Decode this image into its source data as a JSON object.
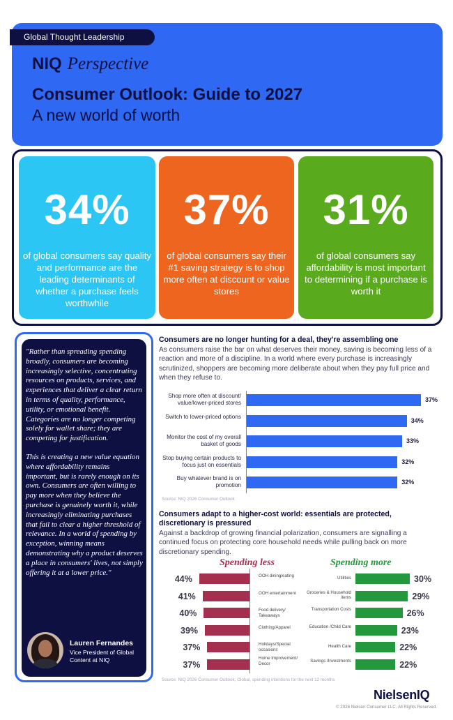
{
  "header": {
    "tag": "Global Thought Leadership",
    "brand_niq": "NIQ",
    "brand_perspective": "Perspective",
    "title": "Consumer Outlook: Guide to 2027",
    "subtitle": "A new world of worth",
    "colors": {
      "header_bg": "#2f68f2",
      "navy": "#0f1042"
    }
  },
  "stats": [
    {
      "value": "34%",
      "text": "of global consumers say quality and performance are the leading determinants of whether a purchase feels worthwhile",
      "color": "#2cc6f4"
    },
    {
      "value": "37%",
      "text": "of global consumers say their #1 saving strategy is to shop more often at discount or value stores",
      "color": "#ee6520"
    },
    {
      "value": "31%",
      "text": "of global consumers say affordability is most important to determining if a purchase is worth it",
      "color": "#5aaa1e"
    }
  ],
  "quote": {
    "paragraph1": "\"Rather than spreading spending broadly, consumers are becoming increasingly selective, concentrating resources on products, services, and experiences that deliver a clear return in terms of quality, performance, utility, or emotional benefit. Categories are no longer competing solely for wallet share; they are competing for justification.",
    "paragraph2": "This is creating a new value equation where affordability remains important, but is rarely enough on its own. Consumers are often willing to pay more when they believe the purchase is genuinely worth it, while increasingly eliminating purchases that fail to clear a higher threshold of relevance. In a world of spending by exception, winning means demonstrating why a product deserves a place in consumers' lives, not simply offering it at a lower price.\"",
    "name": "Lauren Fernandes",
    "role": "Vice President of Global Content at NIQ"
  },
  "section1": {
    "heading": "Consumers are no longer hunting for a deal, they're assembling one",
    "body": "As consumers raise the bar on what deserves their money, saving is becoming less of a reaction and more of a discipline. In a world where every purchase is increasingly scrutinized, shoppers are becoming more deliberate about when they pay full price and when they refuse to.",
    "source": "Source: NIQ 2026 Consumer Outlook"
  },
  "section2": {
    "heading_line1": "Consumers adapt to a higher-cost world: essentials are protected,",
    "heading_line2": "discretionary is pressured",
    "body": "Against a backdrop of growing financial polarization, consumers are signalling a continued focus on protecting core household needs while pulling back on more discretionary spending.",
    "less_title": "Spending less",
    "more_title": "Spending more",
    "source": "Source: NIQ 2026 Consumer Outlook, Global, spending intentions for the next 12 months"
  },
  "chart_data": [
    {
      "type": "bar",
      "orientation": "horizontal",
      "categories": [
        "Shop more often at discount/ value/lower-priced stores",
        "Switch to lower-priced options",
        "Monitor the cost of my overall basket of goods",
        "Stop buying certain products to focus just on essentials",
        "Buy whatever brand is on promotion"
      ],
      "values": [
        37,
        34,
        33,
        32,
        32
      ],
      "value_labels": [
        "37%",
        "34%",
        "33%",
        "32%",
        "32%"
      ],
      "color": "#2f68f2",
      "xlim": [
        0,
        37
      ]
    },
    {
      "type": "bar",
      "orientation": "horizontal",
      "title": "Spending less",
      "categories": [
        "OOH dining/eating",
        "OOH entertainment",
        "Food delivery/ Takeaways",
        "Clothing/Apparel",
        "Holidays/Special occasions",
        "Home Improvement/ Decor"
      ],
      "values": [
        44,
        41,
        40,
        39,
        37,
        37
      ],
      "value_labels": [
        "44%",
        "41%",
        "40%",
        "39%",
        "37%",
        "37%"
      ],
      "color": "#a52f4f"
    },
    {
      "type": "bar",
      "orientation": "horizontal",
      "title": "Spending more",
      "categories": [
        "Utilities",
        "Groceries & Household items",
        "Transportation Costs",
        "Education /Child Care",
        "Health Care",
        "Savings /Investments"
      ],
      "values": [
        30,
        29,
        26,
        23,
        22,
        22
      ],
      "value_labels": [
        "30%",
        "29%",
        "26%",
        "23%",
        "22%",
        "22%"
      ],
      "color": "#23983c"
    }
  ],
  "footer": {
    "logo": "NielsenIQ",
    "copyright": "© 2026 Nielsen Consumer LLC. All Rights Reserved."
  }
}
